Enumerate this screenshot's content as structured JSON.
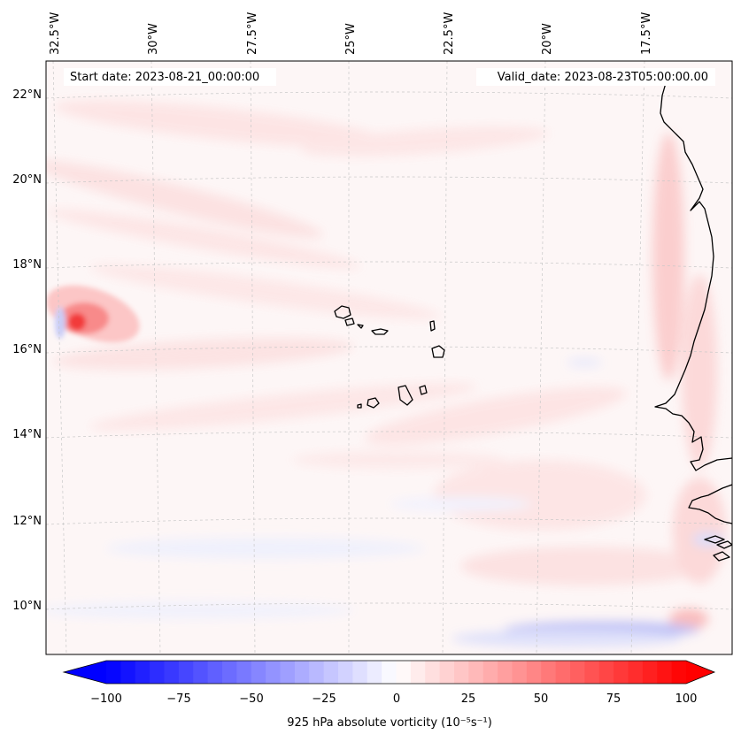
{
  "map": {
    "lon_labels": [
      "32.5°W",
      "30°W",
      "27.5°W",
      "25°W",
      "22.5°W",
      "20°W",
      "17.5°W"
    ],
    "lat_labels": [
      "22°N",
      "20°N",
      "18°N",
      "16°N",
      "14°N",
      "12°N",
      "10°N"
    ],
    "start_date": "Start date: 2023-08-21_00:00:00",
    "valid_date": "Valid_date: 2023-08-23T05:00:00.00",
    "extent": {
      "lon_min": -32.6,
      "lon_max": -15.5,
      "lat_min": 8.8,
      "lat_max": 22.8
    },
    "gridlines": true
  },
  "colorbar": {
    "ticks": [
      "−100",
      "−75",
      "−50",
      "−25",
      "0",
      "25",
      "50",
      "75",
      "100"
    ],
    "tick_values": [
      -100,
      -75,
      -50,
      -25,
      0,
      25,
      50,
      75,
      100
    ],
    "vmin": -100,
    "vmax": 100,
    "levels": 41,
    "extend": "both",
    "label": "925 hPa absolute vorticity (10⁻⁵s⁻¹)",
    "colormap": "bwr",
    "colors": {
      "low": "#0000ff",
      "mid": "#ffffff",
      "high": "#ff0000"
    }
  },
  "colors": {
    "land_outline": "#000000",
    "gridline": "#c8c8c8",
    "background": "#fdf6f6"
  }
}
